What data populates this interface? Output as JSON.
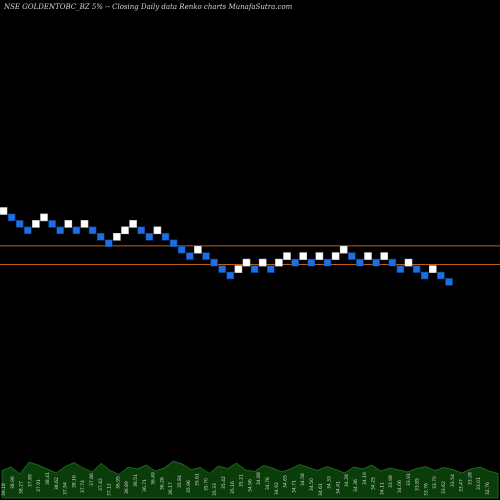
{
  "header": {
    "title": "NSE GOLDENTOBC_BZ 5% -- Closing Daily data Renko charts MunafaSutra.com"
  },
  "colors": {
    "background": "#000000",
    "up_brick": "#ffffff",
    "down_brick": "#1f6fe0",
    "down_brick_border": "#0a3a8a",
    "reference_line": "#b8621b",
    "volume_fill": "#0b3d0b",
    "volume_stroke": "#1f7a1f"
  },
  "chart_data": {
    "type": "renko",
    "brick_size_note": "5%",
    "bricks": [
      {
        "dir": "up",
        "level": 28
      },
      {
        "dir": "down",
        "level": 27
      },
      {
        "dir": "down",
        "level": 26
      },
      {
        "dir": "down",
        "level": 25
      },
      {
        "dir": "up",
        "level": 26
      },
      {
        "dir": "up",
        "level": 27
      },
      {
        "dir": "down",
        "level": 26
      },
      {
        "dir": "down",
        "level": 25
      },
      {
        "dir": "up",
        "level": 26
      },
      {
        "dir": "down",
        "level": 25
      },
      {
        "dir": "up",
        "level": 26
      },
      {
        "dir": "down",
        "level": 25
      },
      {
        "dir": "down",
        "level": 24
      },
      {
        "dir": "down",
        "level": 23
      },
      {
        "dir": "up",
        "level": 24
      },
      {
        "dir": "up",
        "level": 25
      },
      {
        "dir": "up",
        "level": 26
      },
      {
        "dir": "down",
        "level": 25
      },
      {
        "dir": "down",
        "level": 24
      },
      {
        "dir": "up",
        "level": 25
      },
      {
        "dir": "down",
        "level": 24
      },
      {
        "dir": "down",
        "level": 23
      },
      {
        "dir": "down",
        "level": 22
      },
      {
        "dir": "down",
        "level": 21
      },
      {
        "dir": "up",
        "level": 22
      },
      {
        "dir": "down",
        "level": 21
      },
      {
        "dir": "down",
        "level": 20
      },
      {
        "dir": "down",
        "level": 19
      },
      {
        "dir": "down",
        "level": 18
      },
      {
        "dir": "up",
        "level": 19
      },
      {
        "dir": "up",
        "level": 20
      },
      {
        "dir": "down",
        "level": 19
      },
      {
        "dir": "up",
        "level": 20
      },
      {
        "dir": "down",
        "level": 19
      },
      {
        "dir": "up",
        "level": 20
      },
      {
        "dir": "up",
        "level": 21
      },
      {
        "dir": "down",
        "level": 20
      },
      {
        "dir": "up",
        "level": 21
      },
      {
        "dir": "down",
        "level": 20
      },
      {
        "dir": "up",
        "level": 21
      },
      {
        "dir": "down",
        "level": 20
      },
      {
        "dir": "up",
        "level": 21
      },
      {
        "dir": "up",
        "level": 22
      },
      {
        "dir": "down",
        "level": 21
      },
      {
        "dir": "down",
        "level": 20
      },
      {
        "dir": "up",
        "level": 21
      },
      {
        "dir": "down",
        "level": 20
      },
      {
        "dir": "up",
        "level": 21
      },
      {
        "dir": "down",
        "level": 20
      },
      {
        "dir": "down",
        "level": 19
      },
      {
        "dir": "up",
        "level": 20
      },
      {
        "dir": "down",
        "level": 19
      },
      {
        "dir": "down",
        "level": 18
      },
      {
        "dir": "up",
        "level": 19
      },
      {
        "dir": "down",
        "level": 18
      },
      {
        "dir": "down",
        "level": 17
      }
    ],
    "reference_lines": [
      22.6,
      19.7
    ],
    "volume": [
      0.55,
      0.62,
      0.48,
      0.72,
      0.66,
      0.58,
      0.5,
      0.63,
      0.71,
      0.6,
      0.52,
      0.69,
      0.55,
      0.47,
      0.62,
      0.58,
      0.66,
      0.54,
      0.6,
      0.74,
      0.68,
      0.57,
      0.61,
      0.49,
      0.64,
      0.59,
      0.7,
      0.56,
      0.53,
      0.65,
      0.6,
      0.52,
      0.58,
      0.67,
      0.61,
      0.55,
      0.63,
      0.57,
      0.5,
      0.62,
      0.58,
      0.66,
      0.54,
      0.6,
      0.56,
      0.52,
      0.59,
      0.63,
      0.55,
      0.61,
      0.57,
      0.5,
      0.58,
      0.62,
      0.54,
      0.49
    ],
    "volume_labels": [
      "39.18",
      "38.96",
      "38.27",
      "37.89",
      "37.91",
      "38.41",
      "38.62",
      "37.94",
      "38.16",
      "37.74",
      "37.86",
      "37.42",
      "37.12",
      "36.95",
      "36.89",
      "36.51",
      "36.71",
      "36.49",
      "36.26",
      "36.17",
      "35.84",
      "35.96",
      "35.61",
      "35.70",
      "35.33",
      "35.42",
      "35.16",
      "35.21",
      "34.96",
      "34.88",
      "34.76",
      "34.92",
      "34.65",
      "34.71",
      "34.58",
      "34.50",
      "34.61",
      "34.33",
      "34.41",
      "34.28",
      "34.36",
      "34.19",
      "34.25",
      "34.11",
      "33.98",
      "34.06",
      "33.91",
      "33.85",
      "33.76",
      "33.70",
      "33.62",
      "33.54",
      "33.47",
      "33.28",
      "33.01",
      "32.76"
    ]
  }
}
